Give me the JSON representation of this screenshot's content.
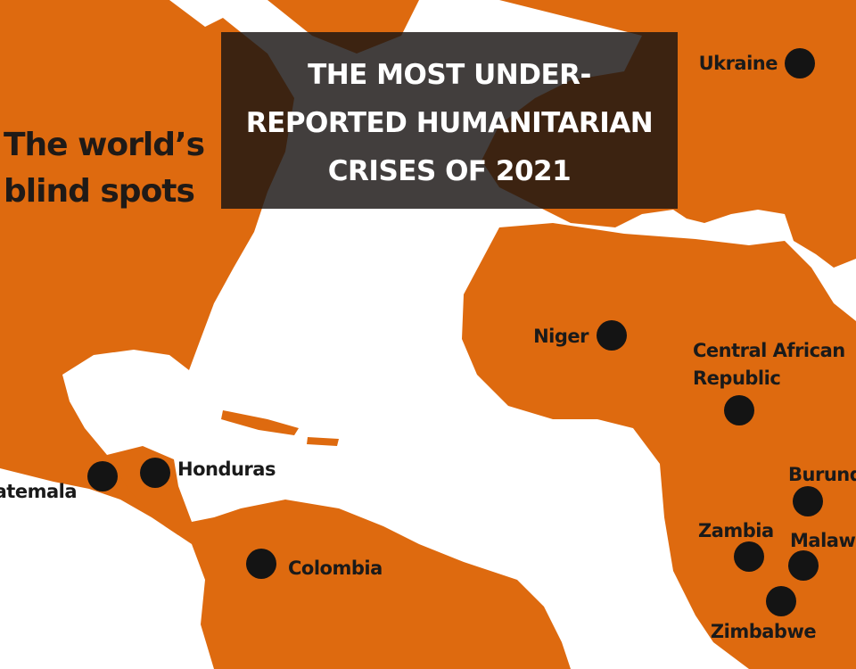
{
  "header": {
    "title_lines": [
      "THE MOST UNDER-",
      "REPORTED HUMANITARIAN",
      "CRISES OF 2021"
    ],
    "subtitle_lines": [
      "The world’s",
      "blind spots"
    ]
  },
  "places": [
    {
      "lines": [
        "Ukraine"
      ]
    },
    {
      "lines": [
        "Niger"
      ]
    },
    {
      "lines": [
        "Central African",
        "Republic"
      ]
    },
    {
      "lines": [
        "Burundi"
      ]
    },
    {
      "lines": [
        "Zambia"
      ]
    },
    {
      "lines": [
        "Malawi"
      ]
    },
    {
      "lines": [
        "Zimbabwe"
      ]
    },
    {
      "lines": [
        "Honduras"
      ]
    },
    {
      "lines": [
        "Guatemala"
      ]
    },
    {
      "lines": [
        "Colombia"
      ]
    }
  ]
}
